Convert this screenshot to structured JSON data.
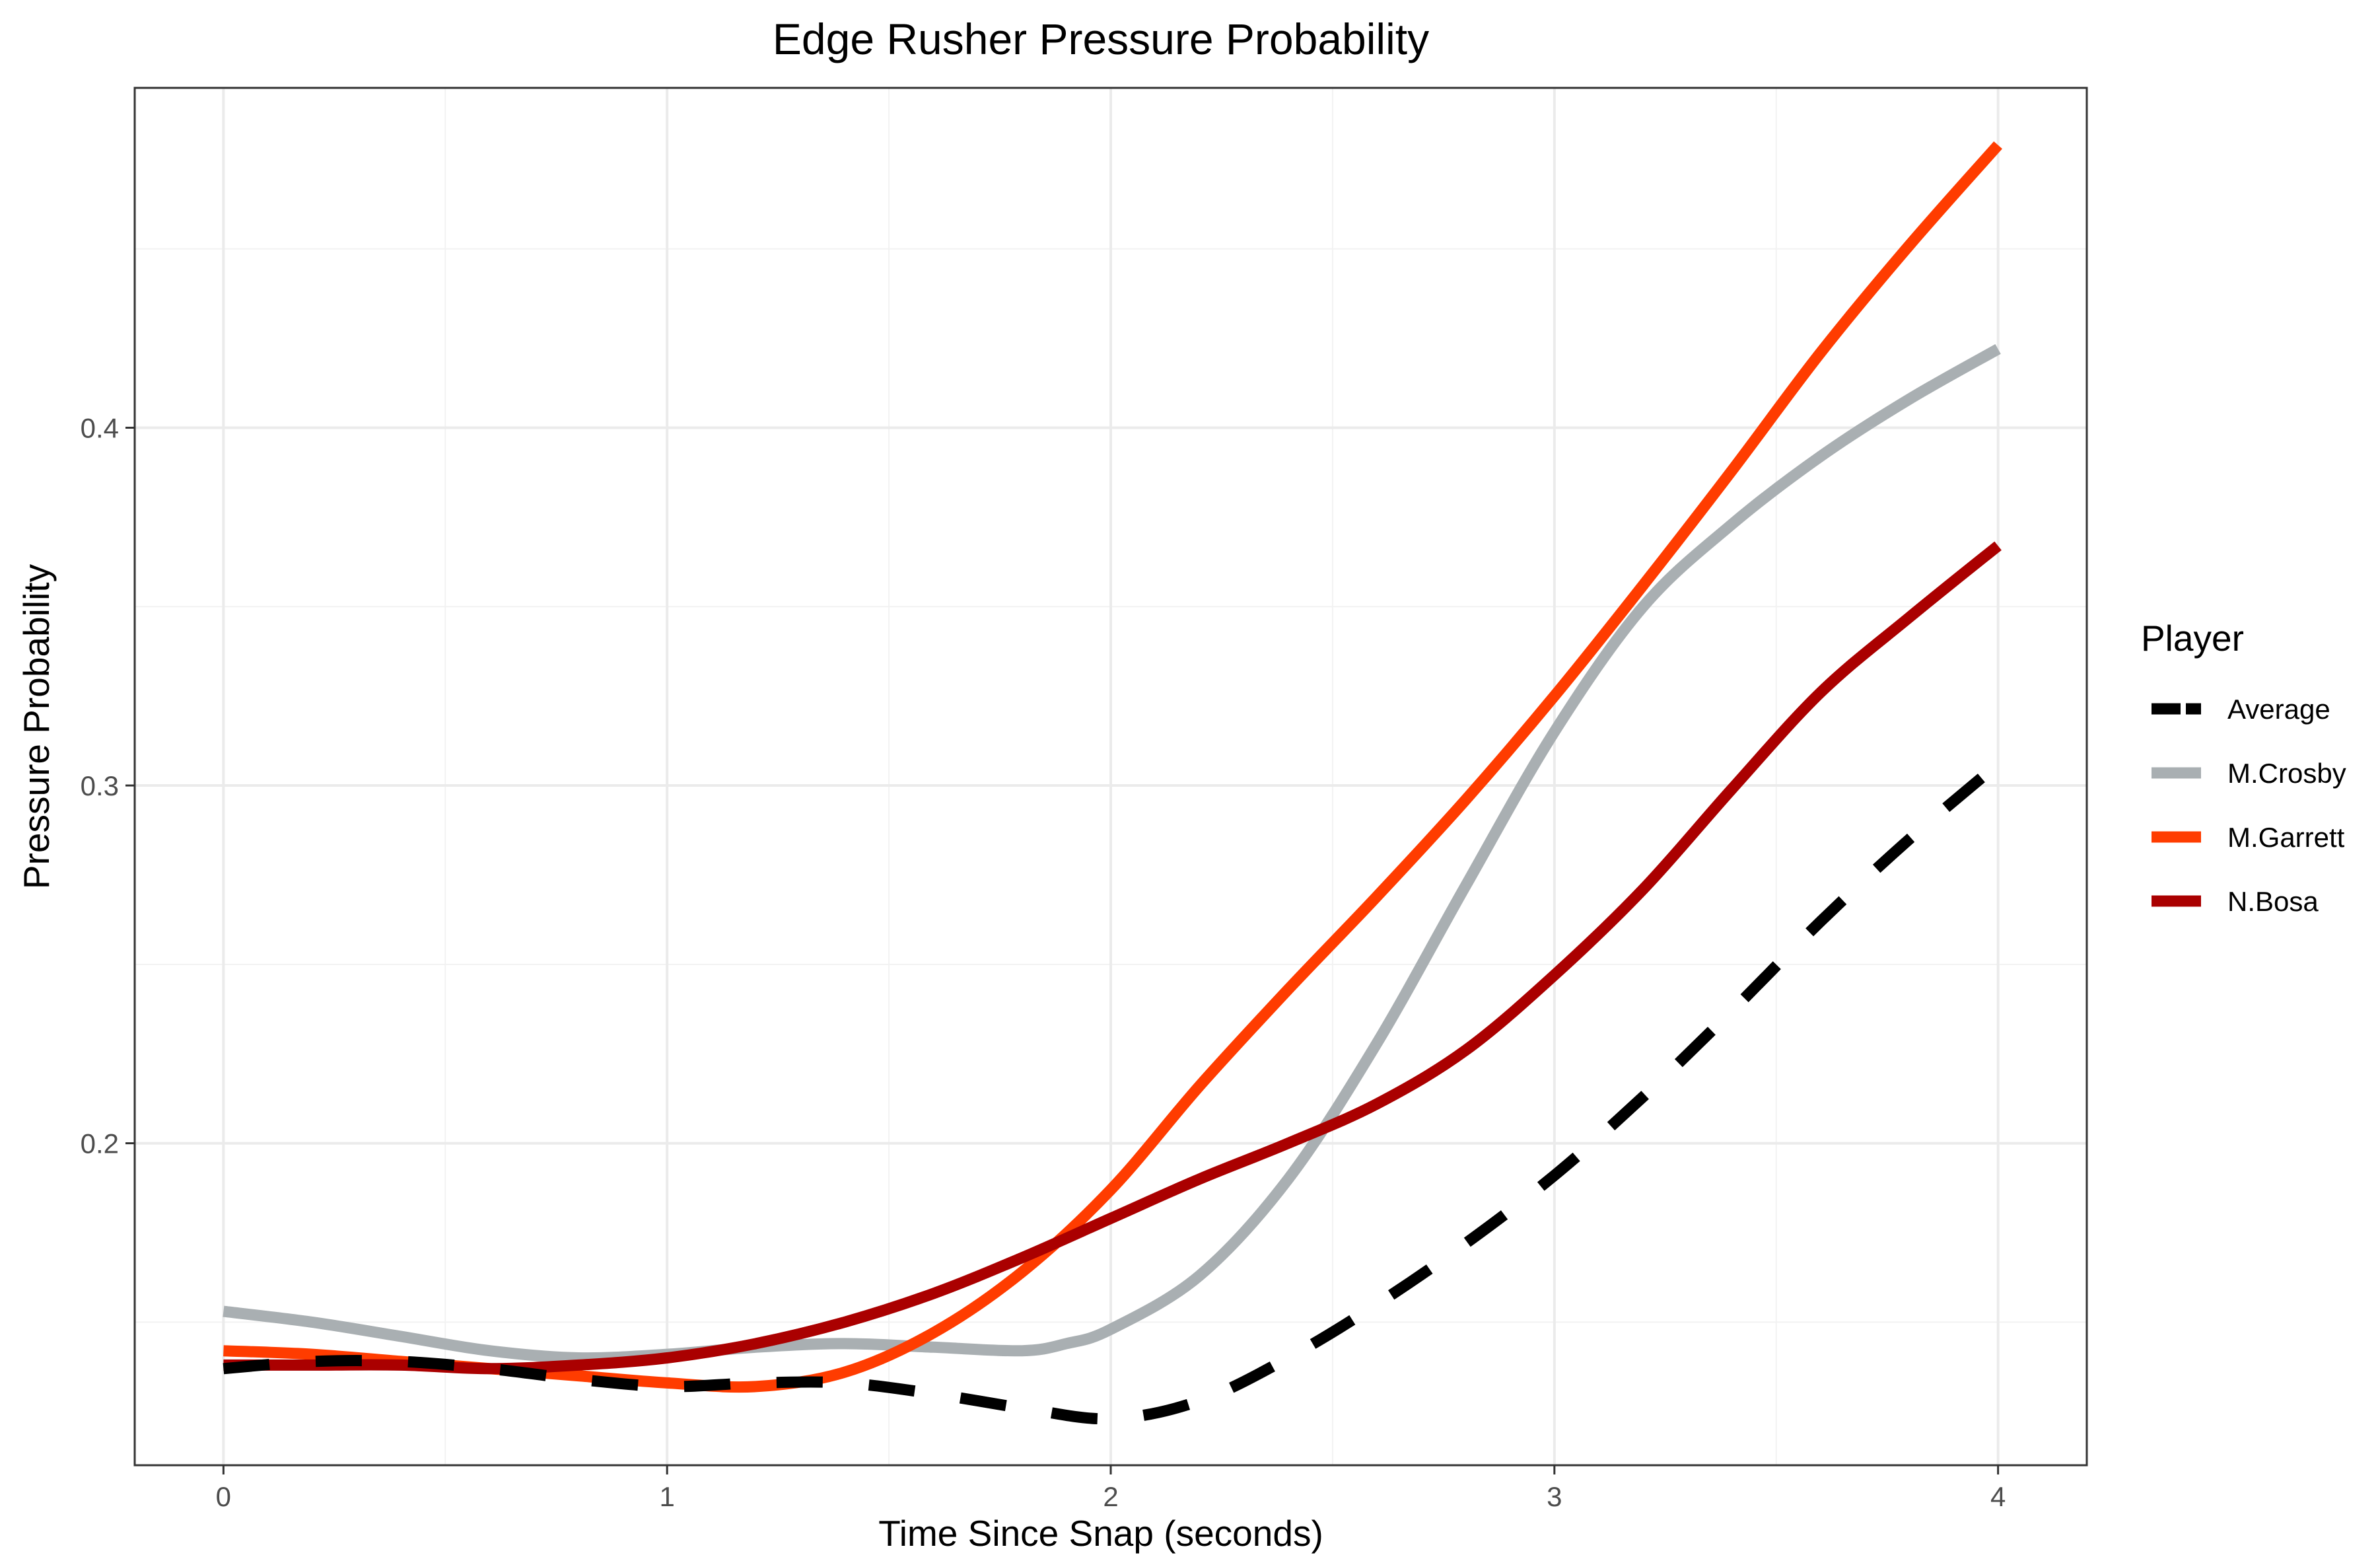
{
  "chart_data": {
    "type": "line",
    "title": "Edge Rusher Pressure Probability",
    "xlabel": "Time Since Snap (seconds)",
    "ylabel": "Pressure Probability",
    "xlim": [
      -0.2,
      4.2
    ],
    "ylim": [
      0.11,
      0.495
    ],
    "x_ticks": [
      0,
      1,
      2,
      3,
      4
    ],
    "x_tick_labels": [
      "0",
      "1",
      "2",
      "3",
      "4"
    ],
    "y_ticks": [
      0.2,
      0.3,
      0.4
    ],
    "y_tick_labels": [
      "0.2",
      "0.3",
      "0.4"
    ],
    "grid": true,
    "legend": {
      "title": "Player",
      "placement": "right"
    },
    "series": [
      {
        "name": "Average",
        "color": "#000000",
        "dash": "dashed",
        "x": [
          0,
          0.2,
          0.4,
          0.6,
          0.8,
          1.0,
          1.2,
          1.4,
          1.6,
          1.8,
          2.0,
          2.2,
          2.4,
          2.6,
          2.8,
          3.0,
          3.2,
          3.4,
          3.6,
          3.8,
          4.0
        ],
        "y": [
          0.137,
          0.139,
          0.139,
          0.137,
          0.134,
          0.132,
          0.133,
          0.133,
          0.13,
          0.126,
          0.123,
          0.128,
          0.14,
          0.155,
          0.172,
          0.191,
          0.213,
          0.237,
          0.262,
          0.285,
          0.306
        ]
      },
      {
        "name": "M.Crosby",
        "color": "#A9AFB2",
        "dash": "solid",
        "x": [
          0,
          0.2,
          0.4,
          0.6,
          0.8,
          1.0,
          1.2,
          1.4,
          1.6,
          1.8,
          1.9,
          2.0,
          2.2,
          2.4,
          2.6,
          2.8,
          3.0,
          3.2,
          3.4,
          3.6,
          3.8,
          4.0
        ],
        "y": [
          0.153,
          0.15,
          0.146,
          0.142,
          0.14,
          0.141,
          0.143,
          0.144,
          0.143,
          0.142,
          0.144,
          0.148,
          0.163,
          0.19,
          0.228,
          0.272,
          0.315,
          0.35,
          0.373,
          0.392,
          0.408,
          0.422
        ]
      },
      {
        "name": "M.Garrett",
        "color": "#FF3C00",
        "dash": "solid",
        "x": [
          0,
          0.2,
          0.4,
          0.6,
          0.8,
          1.0,
          1.2,
          1.4,
          1.6,
          1.8,
          2.0,
          2.2,
          2.4,
          2.6,
          2.8,
          3.0,
          3.2,
          3.4,
          3.6,
          3.8,
          4.0
        ],
        "y": [
          0.142,
          0.141,
          0.139,
          0.137,
          0.135,
          0.133,
          0.132,
          0.136,
          0.147,
          0.164,
          0.187,
          0.216,
          0.243,
          0.269,
          0.296,
          0.325,
          0.356,
          0.388,
          0.421,
          0.451,
          0.479
        ]
      },
      {
        "name": "N.Bosa",
        "color": "#AA0000",
        "dash": "solid",
        "x": [
          0,
          0.2,
          0.4,
          0.6,
          0.8,
          1.0,
          1.2,
          1.4,
          1.6,
          1.8,
          2.0,
          2.2,
          2.4,
          2.6,
          2.8,
          3.0,
          3.2,
          3.4,
          3.6,
          3.8,
          4.0
        ],
        "y": [
          0.138,
          0.138,
          0.138,
          0.137,
          0.138,
          0.14,
          0.144,
          0.15,
          0.158,
          0.168,
          0.179,
          0.19,
          0.2,
          0.211,
          0.226,
          0.247,
          0.271,
          0.299,
          0.326,
          0.347,
          0.367
        ]
      }
    ]
  }
}
